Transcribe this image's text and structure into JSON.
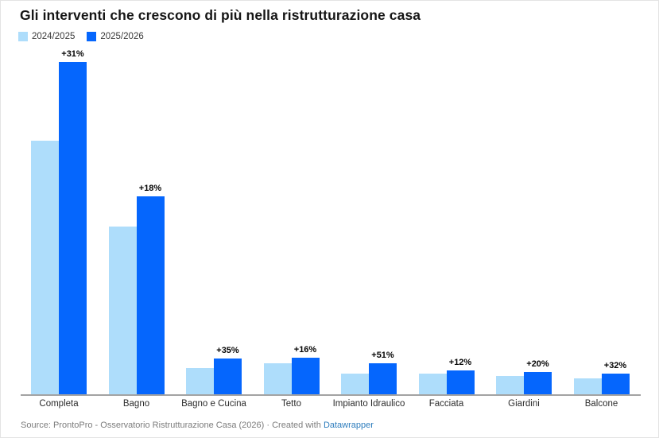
{
  "chart_data": {
    "type": "bar",
    "title": "Gli interventi che crescono di più nella ristrutturazione casa",
    "categories": [
      "Completa",
      "Bagno",
      "Bagno e Cucina",
      "Tetto",
      "Impianto Idraulico",
      "Facciata",
      "Giardini",
      "Balcone"
    ],
    "series": [
      {
        "name": "2024/2025",
        "color": "#aeddfb",
        "values": [
          100,
          66,
          10.4,
          12.3,
          8.0,
          8.3,
          7.3,
          6.3
        ]
      },
      {
        "name": "2025/2026",
        "color": "#0566fd",
        "values": [
          131,
          77.9,
          14.0,
          14.3,
          12.1,
          9.3,
          8.8,
          8.3
        ]
      }
    ],
    "bar_labels": [
      "+31%",
      "+18%",
      "+35%",
      "+16%",
      "+51%",
      "+12%",
      "+20%",
      "+32%"
    ],
    "growth_pct": [
      31,
      18,
      35,
      16,
      51,
      12,
      20,
      32
    ],
    "xlabel": "",
    "ylabel": "",
    "units": "relative index (no y-axis shown; values estimated from bar heights with 2024/2025 Completa = 100)",
    "legend_position": "top-left",
    "grid": false,
    "axis_color": "#a3a3a3",
    "bar_label_color": "#050505"
  },
  "footer": {
    "source": "Source: ProntoPro - Osservatorio Ristrutturazione Casa (2026)",
    "separator": "·",
    "created": "Created with",
    "link_label": "Datawrapper",
    "link_color": "#2e7dbd"
  }
}
